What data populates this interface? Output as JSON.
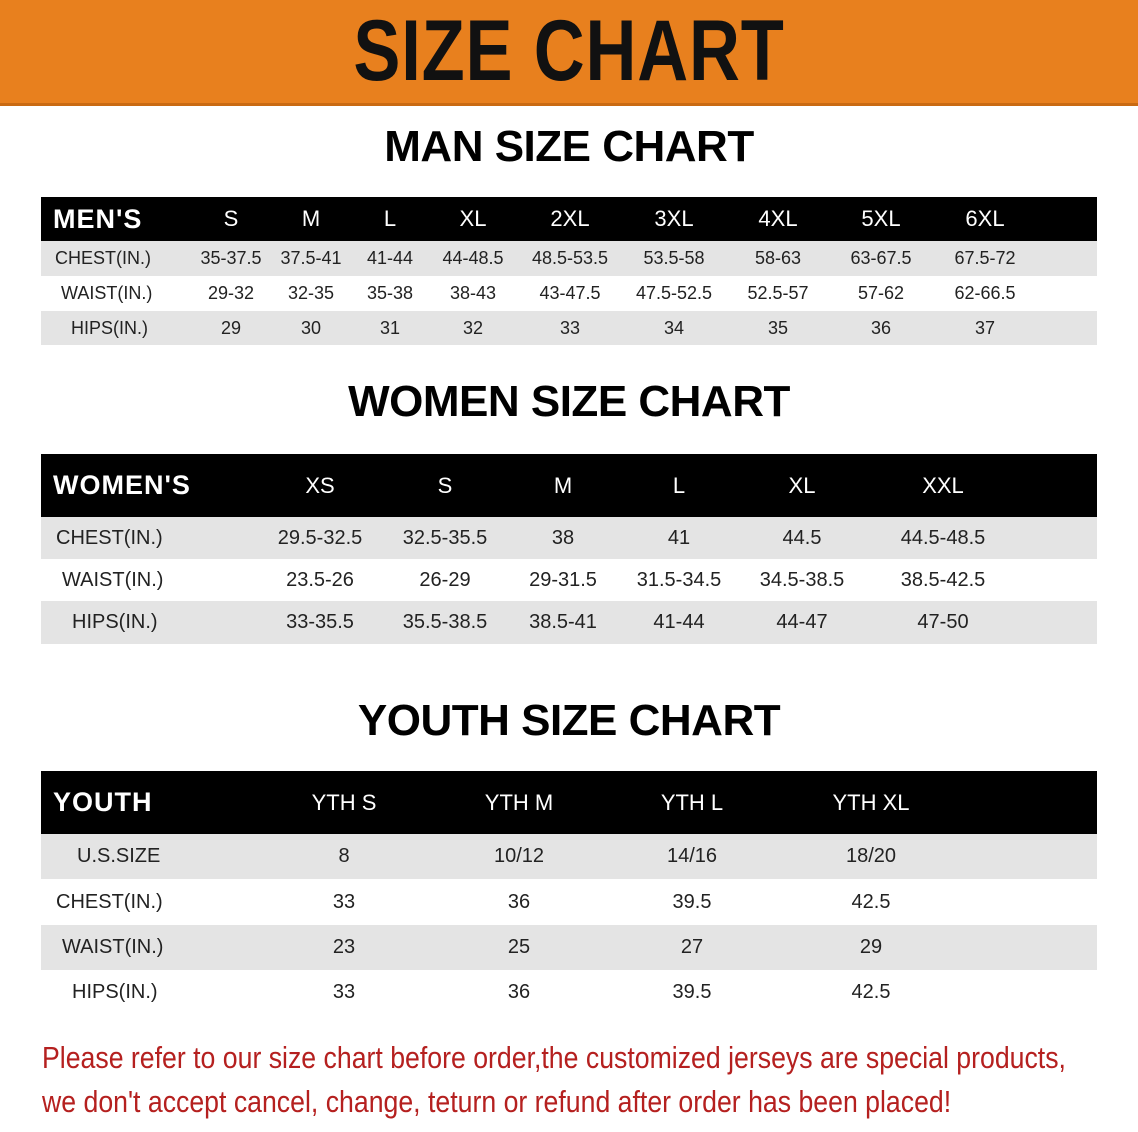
{
  "banner": {
    "title": "SIZE CHART",
    "color": "#e8801e"
  },
  "men": {
    "title": "MAN SIZE CHART",
    "header": [
      "MEN'S",
      "S",
      "M",
      "L",
      "XL",
      "2XL",
      "3XL",
      "4XL",
      "5XL",
      "6XL"
    ],
    "rows": [
      [
        "CHEST(IN.)",
        "35-37.5",
        "37.5-41",
        "41-44",
        "44-48.5",
        "48.5-53.5",
        "53.5-58",
        "58-63",
        "63-67.5",
        "67.5-72"
      ],
      [
        "WAIST(IN.)",
        "29-32",
        "32-35",
        "35-38",
        "38-43",
        "43-47.5",
        "47.5-52.5",
        "52.5-57",
        "57-62",
        "62-66.5"
      ],
      [
        "HIPS(IN.)",
        "29",
        "30",
        "31",
        "32",
        "33",
        "34",
        "35",
        "36",
        "37"
      ]
    ]
  },
  "women": {
    "title": "WOMEN SIZE CHART",
    "header": [
      "WOMEN'S",
      "XS",
      "S",
      "M",
      "L",
      "XL",
      "XXL"
    ],
    "rows": [
      [
        "CHEST(IN.)",
        "29.5-32.5",
        "32.5-35.5",
        "38",
        "41",
        "44.5",
        "44.5-48.5"
      ],
      [
        "WAIST(IN.)",
        "23.5-26",
        "26-29",
        "29-31.5",
        "31.5-34.5",
        "34.5-38.5",
        "38.5-42.5"
      ],
      [
        "HIPS(IN.)",
        "33-35.5",
        "35.5-38.5",
        "38.5-41",
        "41-44",
        "44-47",
        "47-50"
      ]
    ]
  },
  "youth": {
    "title": "YOUTH SIZE CHART",
    "header": [
      "YOUTH",
      "YTH S",
      "YTH M",
      "YTH L",
      "YTH XL"
    ],
    "rows": [
      [
        "U.S.SIZE",
        "8",
        "10/12",
        "14/16",
        "18/20"
      ],
      [
        "CHEST(IN.)",
        "33",
        "36",
        "39.5",
        "42.5"
      ],
      [
        "WAIST(IN.)",
        "23",
        "25",
        "27",
        "29"
      ],
      [
        "HIPS(IN.)",
        "33",
        "36",
        "39.5",
        "42.5"
      ]
    ]
  },
  "notice": {
    "line1": "Please refer to our size chart before order,the customized jerseys are special products,",
    "line2": "we don't accept cancel, change, teturn or refund after order has been placed!",
    "color": "#b5201f"
  }
}
